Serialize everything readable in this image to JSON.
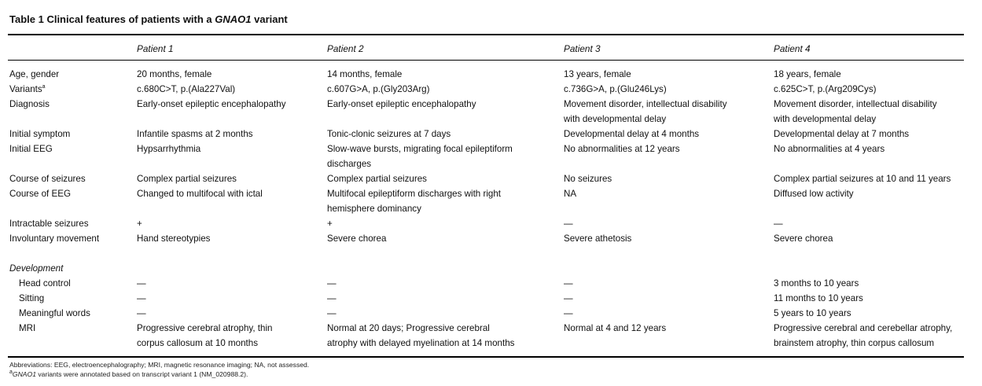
{
  "table": {
    "title_prefix": "Table 1  Clinical features of patients with a ",
    "title_gene": "GNAO1",
    "title_suffix": " variant",
    "headers": [
      "Patient 1",
      "Patient 2",
      "Patient 3",
      "Patient 4"
    ],
    "rows": {
      "age": {
        "label": "Age, gender",
        "c": [
          "20 months, female",
          "14 months, female",
          "13 years, female",
          "18 years, female"
        ]
      },
      "variants": {
        "label": "Variants",
        "sup": "a",
        "c": [
          "c.680C>T, p.(Ala227Val)",
          "c.607G>A, p.(Gly203Arg)",
          "c.736G>A, p.(Glu246Lys)",
          "c.625C>T, p.(Arg209Cys)"
        ]
      },
      "diagnosis": {
        "label": "Diagnosis",
        "c": [
          "Early-onset epileptic encephalopathy",
          "Early-onset epileptic encephalopathy",
          [
            "Movement disorder, intellectual disability",
            "with developmental delay"
          ],
          [
            "Movement disorder, intellectual disability",
            "with developmental delay"
          ]
        ]
      },
      "initial_symptom": {
        "label": "Initial symptom",
        "c": [
          "Infantile spasms at 2 months",
          "Tonic-clonic seizures at 7 days",
          "Developmental delay at 4 months",
          "Developmental delay at 7 months"
        ]
      },
      "initial_eeg": {
        "label": "Initial EEG",
        "c": [
          "Hypsarrhythmia",
          [
            "Slow-wave bursts, migrating focal epileptiform",
            "discharges"
          ],
          "No abnormalities at 12 years",
          "No abnormalities at 4 years"
        ]
      },
      "course_seizures": {
        "label": "Course of seizures",
        "c": [
          "Complex partial seizures",
          "Complex partial seizures",
          "No seizures",
          "Complex partial seizures at 10 and 11 years"
        ]
      },
      "course_eeg": {
        "label": "Course of EEG",
        "c": [
          "Changed to multifocal with ictal",
          [
            "Multifocal epileptiform discharges with right",
            "hemisphere dominancy"
          ],
          "NA",
          "Diffused low activity"
        ]
      },
      "intractable": {
        "label": "Intractable seizures",
        "c": [
          "+",
          "+",
          "—",
          "—"
        ]
      },
      "involuntary": {
        "label": "Involuntary movement",
        "c": [
          "Hand stereotypies",
          "Severe chorea",
          "Severe athetosis",
          "Severe chorea"
        ]
      },
      "development": {
        "label": "Development"
      },
      "head_control": {
        "label": "Head control",
        "c": [
          "—",
          "—",
          "—",
          "3 months to 10 years"
        ]
      },
      "sitting": {
        "label": "Sitting",
        "c": [
          "—",
          "—",
          "—",
          "11 months to 10 years"
        ]
      },
      "words": {
        "label": "Meaningful words",
        "c": [
          "—",
          "—",
          "—",
          "5 years to 10 years"
        ]
      },
      "mri": {
        "label": "MRI",
        "c": [
          [
            "Progressive cerebral atrophy, thin",
            "corpus callosum at 10 months"
          ],
          [
            "Normal at 20 days; Progressive cerebral",
            "atrophy with delayed myelination at 14 months"
          ],
          "Normal at 4 and 12 years",
          [
            "Progressive cerebral and cerebellar atrophy,",
            "brainstem atrophy, thin corpus callosum"
          ]
        ]
      }
    },
    "footnotes": {
      "abbrev": "Abbreviations: EEG, electroencephalography; MRI, magnetic resonance imaging; NA, not assessed.",
      "a_sup": "a",
      "a_gene": "GNAO1",
      "a_text": " variants were annotated based on transcript variant 1 (NM_020988.2)."
    }
  }
}
